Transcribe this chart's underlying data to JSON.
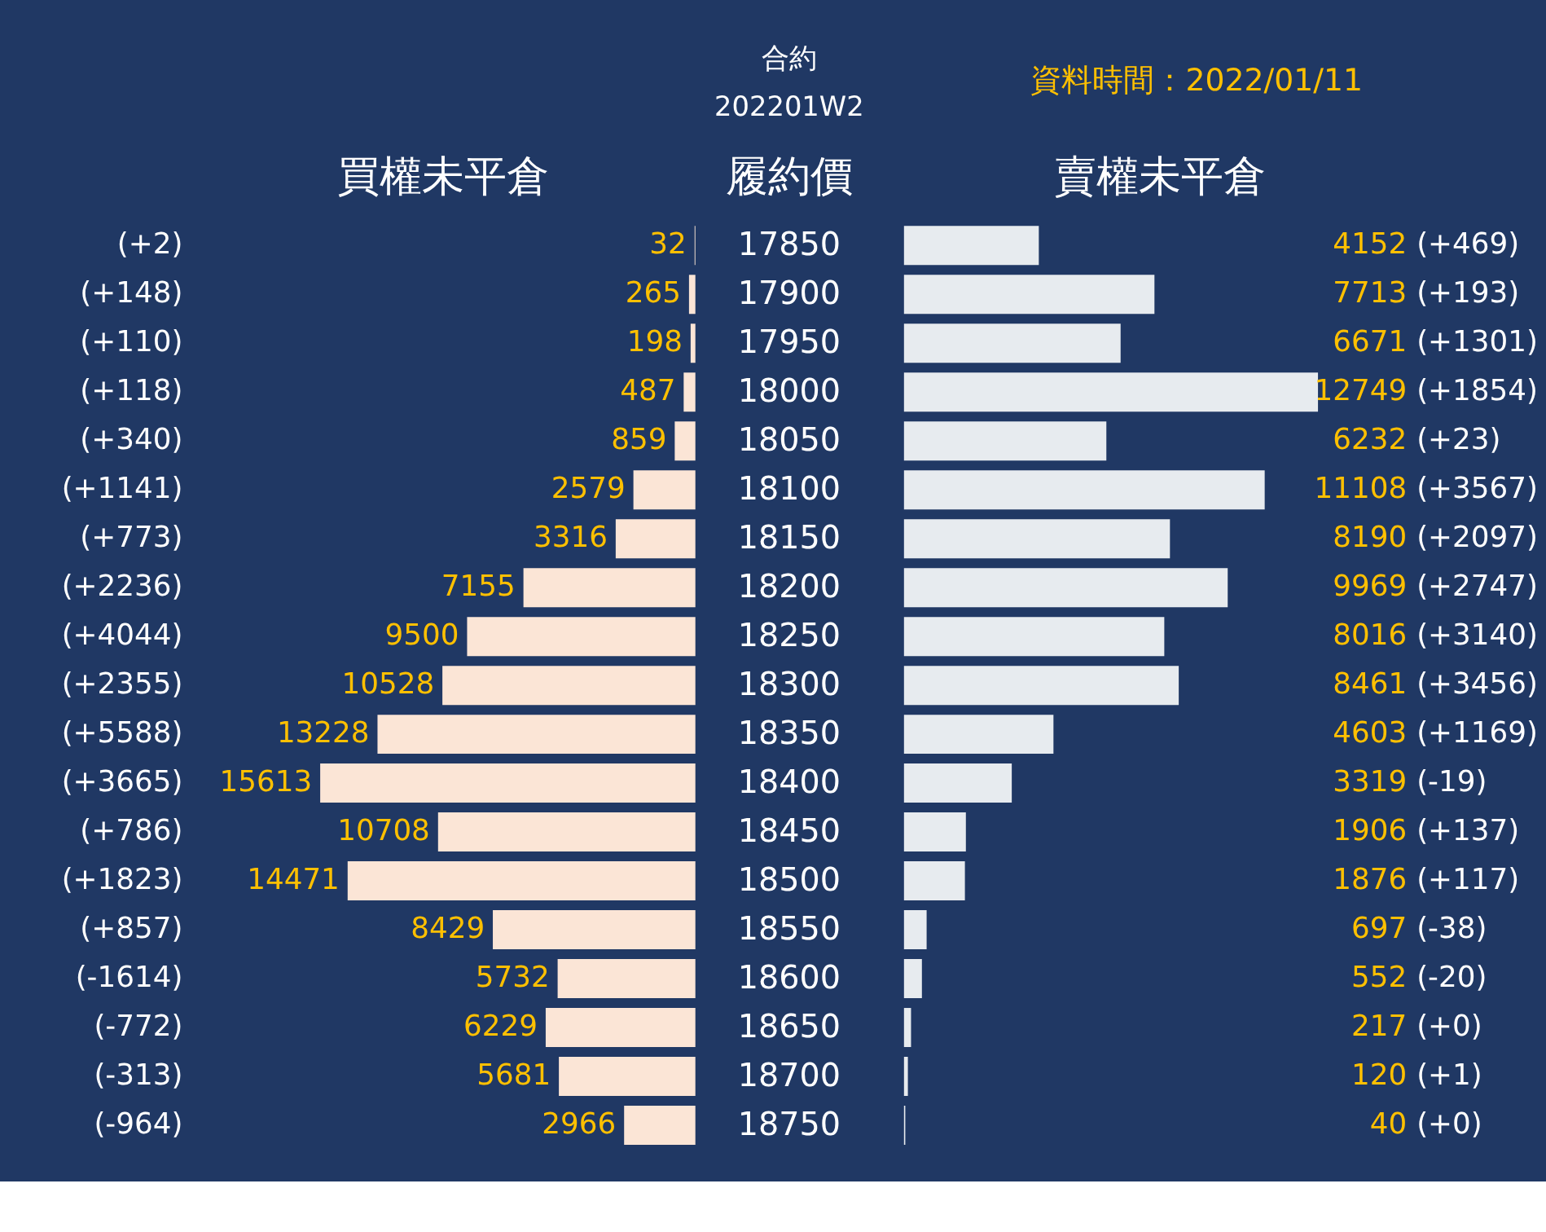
{
  "chart_data": [
    {
      "type": "bar",
      "orientation": "horizontal",
      "title": "合約",
      "subtitle": "202201W2",
      "xlabel": "買權未平倉",
      "ylabel": "履約價",
      "data_labels": true,
      "tick_labels": "y",
      "categories": [
        "17850",
        "17900",
        "17950",
        "18000",
        "18050",
        "18100",
        "18150",
        "18200",
        "18250",
        "18300",
        "18350",
        "18400",
        "18450",
        "18500",
        "18550",
        "18600",
        "18650",
        "18700",
        "18750"
      ],
      "series": [
        {
          "color": "#fbe5d6",
          "values": [
            32,
            265,
            198,
            487,
            859,
            2579,
            3316,
            7155,
            9500,
            10528,
            13228,
            15613,
            10708,
            14471,
            8429,
            5732,
            6229,
            5681,
            2966
          ]
        }
      ],
      "annotations": [
        "(+2)",
        "(+148)",
        "(+110)",
        "(+118)",
        "(+340)",
        "(+1141)",
        "(+773)",
        "(+2236)",
        "(+4044)",
        "(+2355)",
        "(+5588)",
        "(+3665)",
        "(+786)",
        "(+1823)",
        "(+857)",
        "(-1614)",
        "(-772)",
        "(-313)",
        "(-964)"
      ]
    },
    {
      "type": "bar",
      "orientation": "horizontal",
      "xlabel": "賣權未平倉",
      "data_labels": true,
      "tick_labels": false,
      "categories": [
        "17850",
        "17900",
        "17950",
        "18000",
        "18050",
        "18100",
        "18150",
        "18200",
        "18250",
        "18300",
        "18350",
        "18400",
        "18450",
        "18500",
        "18550",
        "18600",
        "18650",
        "18700",
        "18750"
      ],
      "series": [
        {
          "color": "#e7ebef",
          "values": [
            4152,
            7713,
            6671,
            12749,
            6232,
            11108,
            8190,
            9969,
            8016,
            8461,
            4603,
            3319,
            1906,
            1876,
            697,
            552,
            217,
            120,
            40
          ]
        }
      ],
      "annotations": [
        "(+469)",
        "(+193)",
        "(+1301)",
        "(+1854)",
        "(+23)",
        "(+3567)",
        "(+2097)",
        "(+2747)",
        "(+3140)",
        "(+3456)",
        "(+1169)",
        "(-19)",
        "(+137)",
        "(+117)",
        "(-38)",
        "(-20)",
        "(+0)",
        "(+1)",
        "(+0)",
        "資料時間：2022/01/11"
      ]
    }
  ]
}
